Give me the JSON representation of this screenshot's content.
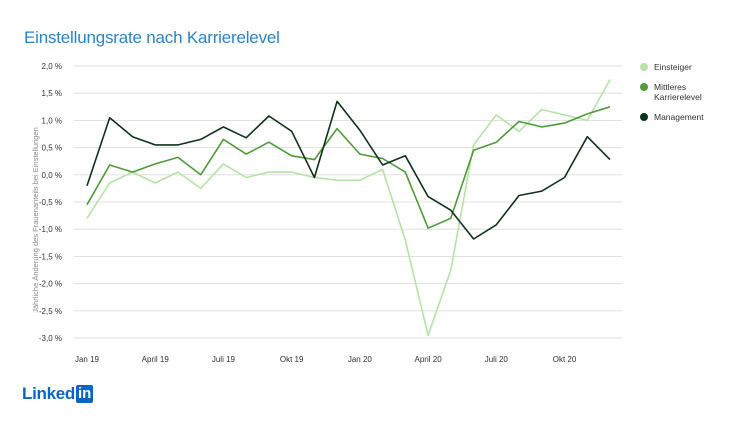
{
  "title": "Einstellungsrate nach Karrierelevel",
  "logo": {
    "text": "Linked",
    "box": "in"
  },
  "colors": {
    "Einsteiger": "#b5e3a6",
    "Mittleres Karrierelevel": "#4f9b3a",
    "Management": "#10321a"
  },
  "chart_data": {
    "type": "line",
    "title": "Einstellungsrate nach Karrierelevel",
    "xlabel": "",
    "ylabel": "Jährliche Änderung des Frauenanteils bei Einstellungen",
    "ylim": [
      -3.0,
      2.0
    ],
    "yticks": [
      2.0,
      1.5,
      1.0,
      0.5,
      0.0,
      -0.5,
      -1.0,
      -1.5,
      -2.0,
      -2.5,
      -3.0
    ],
    "ytick_labels": [
      "2,0 %",
      "1,5 %",
      "1,0 %",
      "0,5 %",
      "0,0 %",
      "-0,5 %",
      "-1,0 %",
      "-1,5 %",
      "-2,0 %",
      "-2,5 %",
      "-3,0 %"
    ],
    "grid": true,
    "legend": "right",
    "categories": [
      "Jan 19",
      "Feb 19",
      "März 19",
      "April 19",
      "Mai 19",
      "Juni 19",
      "Juli 19",
      "Aug 19",
      "Sep 19",
      "Okt 19",
      "Nov 19",
      "Dez 19",
      "Jan 20",
      "Feb 20",
      "März 20",
      "April 20",
      "Mai 20",
      "Juni 20",
      "Juli 20",
      "Aug 20",
      "Sep 20",
      "Okt 20",
      "Nov 20",
      "Dez 20"
    ],
    "xtick_labels": [
      {
        "index": 0,
        "label": "Jan 19"
      },
      {
        "index": 3,
        "label": "April 19"
      },
      {
        "index": 6,
        "label": "Juli 19"
      },
      {
        "index": 9,
        "label": "Okt 19"
      },
      {
        "index": 12,
        "label": "Jan 20"
      },
      {
        "index": 15,
        "label": "April 20"
      },
      {
        "index": 18,
        "label": "Juli 20"
      },
      {
        "index": 21,
        "label": "Okt 20"
      }
    ],
    "series": [
      {
        "name": "Einsteiger",
        "values": [
          -0.8,
          -0.15,
          0.05,
          -0.15,
          0.05,
          -0.25,
          0.2,
          -0.05,
          0.05,
          0.05,
          -0.05,
          -0.1,
          -0.1,
          0.1,
          -1.2,
          -2.95,
          -1.75,
          0.55,
          1.1,
          0.8,
          1.2,
          1.1,
          1.0,
          1.75
        ]
      },
      {
        "name": "Mittleres Karrierelevel",
        "values": [
          -0.55,
          0.18,
          0.05,
          0.2,
          0.32,
          0.0,
          0.65,
          0.38,
          0.6,
          0.35,
          0.28,
          0.85,
          0.38,
          0.3,
          0.05,
          -0.98,
          -0.8,
          0.45,
          0.6,
          0.98,
          0.88,
          0.95,
          1.12,
          1.25
        ]
      },
      {
        "name": "Management",
        "values": [
          -0.2,
          1.05,
          0.7,
          0.55,
          0.55,
          0.65,
          0.88,
          0.68,
          1.08,
          0.8,
          -0.05,
          1.35,
          0.82,
          0.18,
          0.35,
          -0.4,
          -0.65,
          -1.18,
          -0.92,
          -0.38,
          -0.3,
          -0.05,
          0.7,
          0.28
        ]
      }
    ]
  }
}
